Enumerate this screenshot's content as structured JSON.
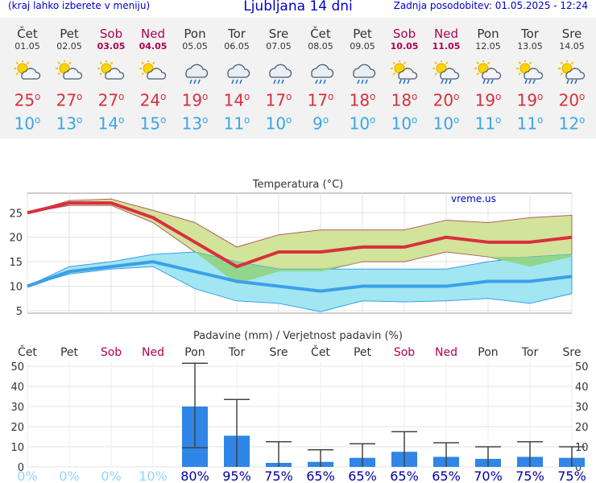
{
  "header": {
    "menu_hint": "(kraj lahko izberete v meniju)",
    "title": "Ljubljana 14 dni",
    "updated": "Zadnja posodobitev: 01.05.2025 - 12:24"
  },
  "days": [
    {
      "name": "Čet",
      "date": "01.05",
      "weekend": false,
      "icon": "sun-cloud-icon",
      "tmax": "25",
      "tmin": "10"
    },
    {
      "name": "Pet",
      "date": "02.05",
      "weekend": false,
      "icon": "sun-cloud-icon",
      "tmax": "27",
      "tmin": "13"
    },
    {
      "name": "Sob",
      "date": "03.05",
      "weekend": true,
      "icon": "sun-cloud-icon",
      "tmax": "27",
      "tmin": "14"
    },
    {
      "name": "Ned",
      "date": "04.05",
      "weekend": true,
      "icon": "sun-cloud-icon",
      "tmax": "24",
      "tmin": "15"
    },
    {
      "name": "Pon",
      "date": "05.05",
      "weekend": false,
      "icon": "rain-cloud-icon",
      "tmax": "19",
      "tmin": "13"
    },
    {
      "name": "Tor",
      "date": "06.05",
      "weekend": false,
      "icon": "rain-cloud-icon",
      "tmax": "14",
      "tmin": "11"
    },
    {
      "name": "Sre",
      "date": "07.05",
      "weekend": false,
      "icon": "rain-cloud-icon",
      "tmax": "17",
      "tmin": "10"
    },
    {
      "name": "Čet",
      "date": "08.05",
      "weekend": false,
      "icon": "rain-cloud-icon",
      "tmax": "17",
      "tmin": "9"
    },
    {
      "name": "Pet",
      "date": "09.05",
      "weekend": false,
      "icon": "rain-cloud-icon",
      "tmax": "18",
      "tmin": "10"
    },
    {
      "name": "Sob",
      "date": "10.05",
      "weekend": true,
      "icon": "sun-rain-icon",
      "tmax": "18",
      "tmin": "10"
    },
    {
      "name": "Ned",
      "date": "11.05",
      "weekend": true,
      "icon": "sun-rain-icon",
      "tmax": "20",
      "tmin": "10"
    },
    {
      "name": "Pon",
      "date": "12.05",
      "weekend": false,
      "icon": "sun-rain-icon",
      "tmax": "19",
      "tmin": "11"
    },
    {
      "name": "Tor",
      "date": "13.05",
      "weekend": false,
      "icon": "sun-rain-icon",
      "tmax": "19",
      "tmin": "11"
    },
    {
      "name": "Sre",
      "date": "14.05",
      "weekend": false,
      "icon": "sun-rain-icon",
      "tmax": "20",
      "tmin": "12"
    }
  ],
  "chart_data": [
    {
      "type": "line",
      "title": "Temperatura (°C)",
      "watermark": "vreme.us",
      "ylim": [
        4.5,
        29
      ],
      "yticks": [
        5,
        10,
        15,
        20,
        25
      ],
      "grid": true,
      "series": [
        {
          "values": [
            25,
            27,
            27,
            24,
            19,
            14,
            17,
            17,
            18,
            18,
            20,
            19,
            19,
            20
          ],
          "color": "#d8303e"
        },
        {
          "values": [
            10,
            13,
            14,
            15,
            13,
            11,
            10,
            9,
            10,
            10,
            10,
            11,
            11,
            12
          ],
          "color": "#3aa0e8"
        }
      ],
      "max_band_low": [
        25,
        26.5,
        26.5,
        23,
        17,
        10.5,
        13,
        13,
        15,
        15,
        17,
        16,
        14,
        16
      ],
      "max_band_high": [
        25,
        27.5,
        27.8,
        25.5,
        23,
        18,
        20.5,
        21.5,
        21.5,
        21.5,
        23.5,
        23,
        24,
        24.5
      ],
      "min_band_low": [
        10,
        12.5,
        13.5,
        14,
        9.5,
        7,
        6.5,
        4.8,
        7,
        6.8,
        7,
        7.5,
        6.5,
        8.5
      ],
      "min_band_high": [
        10,
        14,
        15,
        16.5,
        17,
        15,
        13.5,
        13.5,
        13.5,
        13.5,
        13.5,
        15,
        16,
        16.5
      ],
      "colors": {
        "max_band": "#d2e39a",
        "min_band": "#a2e6f2",
        "overlap": "#8ed27a"
      }
    },
    {
      "type": "bar",
      "title": "Padavine (mm) / Verjetnost padavin (%)",
      "ylim": [
        0,
        52
      ],
      "yticks": [
        0,
        10,
        20,
        30,
        40,
        50
      ],
      "grid": true,
      "values": [
        0,
        0,
        0,
        0,
        30,
        15.5,
        2,
        2.5,
        4.5,
        7.5,
        5,
        4,
        5,
        4.5
      ],
      "error_low": [
        0,
        0,
        0,
        0,
        9.5,
        0,
        0,
        0,
        0,
        0,
        0,
        0,
        0,
        0
      ],
      "error_high": [
        0,
        0,
        0,
        0,
        51.5,
        33.5,
        12.5,
        8.5,
        11.5,
        17.5,
        12,
        10,
        12.5,
        10
      ],
      "probability": [
        "0%",
        "0%",
        "0%",
        "10%",
        "80%",
        "95%",
        "75%",
        "65%",
        "65%",
        "65%",
        "65%",
        "70%",
        "75%",
        "75%"
      ],
      "colors": {
        "bar": "#2f86e6",
        "prob_low": "#8fd6f5",
        "prob_high": "#0000a0"
      }
    }
  ]
}
